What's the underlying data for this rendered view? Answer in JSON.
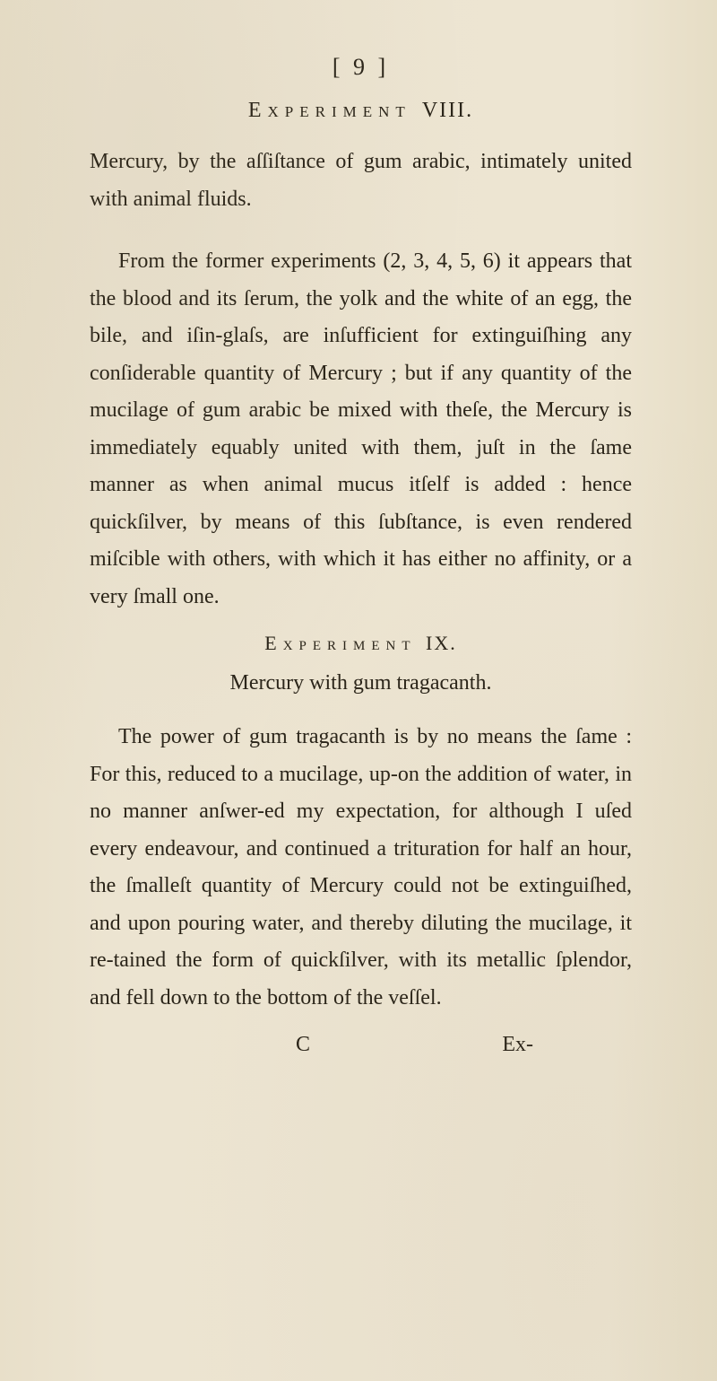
{
  "page": {
    "number": "[ 9 ]",
    "heading_word": "Experiment",
    "heading_num": "VIII.",
    "intro": "Mercury, by the aſſiſtance of gum arabic, intimately united with animal fluids.",
    "para1": "From the former experiments (2, 3, 4, 5, 6) it appears that the blood and its ſerum, the yolk and the white of an egg, the bile, and iſin-glaſs, are inſufficient for extinguiſhing any conſiderable quantity of Mercury ; but if any quantity of the mucilage of gum arabic be mixed with theſe, the Mercury is immediately equably united with them, juſt in the ſame manner as when animal mucus itſelf is added : hence quickſilver, by means of this ſubſtance, is even rendered miſcible with others, with which it has either no affinity, or a very ſmall one.",
    "subheading_word": "Experiment",
    "subheading_num": "IX.",
    "subtitle": "Mercury with gum tragacanth.",
    "para2": "The power of gum tragacanth is by no means the ſame : For this, reduced to a mucilage, up-on the addition of water, in no manner anſwer-ed my expectation, for although I uſed every endeavour, and continued a trituration for half an hour, the ſmalleſt quantity of Mercury could not be extinguiſhed, and upon pouring water, and thereby diluting the mucilage, it re-tained the form of quickſilver, with its metallic ſplendor, and fell down to the bottom of the veſſel.",
    "footer_sig": "C",
    "footer_catch": "Ex-"
  },
  "style": {
    "background_color": "#ebe3d0",
    "text_color": "#2a2419",
    "font_family": "Caslon, Garamond, Times New Roman, serif",
    "body_fontsize": 24,
    "heading_fontsize": 24,
    "line_height": 1.73
  }
}
